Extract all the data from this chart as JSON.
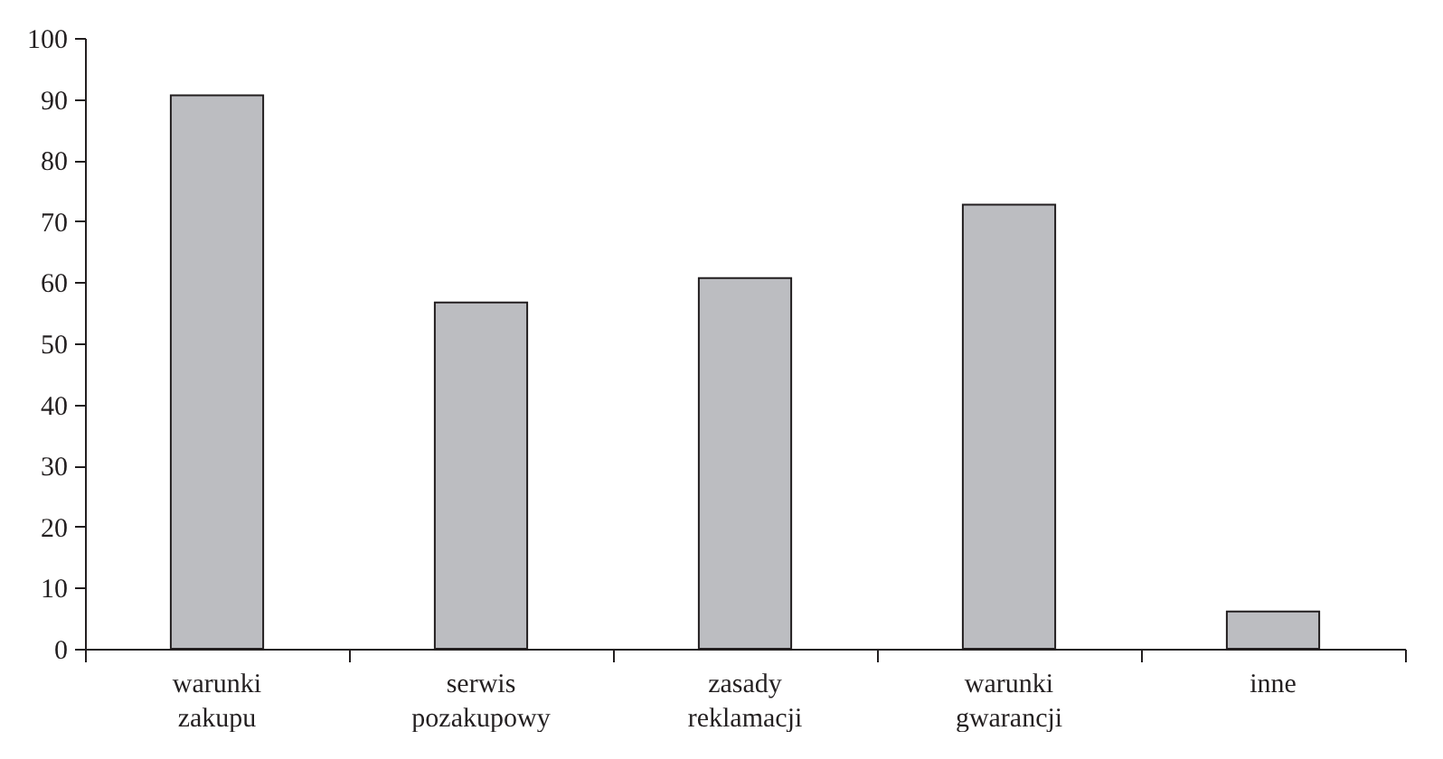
{
  "chart_data": {
    "type": "bar",
    "categories": [
      "warunki zakupu",
      "serwis pozakupowy",
      "zasady reklamacji",
      "warunki gwarancji",
      "inne"
    ],
    "values": [
      90.6,
      56.7,
      60.7,
      72.7,
      6.1
    ],
    "color": "#bcbdc1",
    "ylim": [
      0,
      100
    ],
    "yticks": [
      0,
      10,
      20,
      30,
      40,
      50,
      60,
      70,
      80,
      90,
      100
    ],
    "grid": false
  }
}
